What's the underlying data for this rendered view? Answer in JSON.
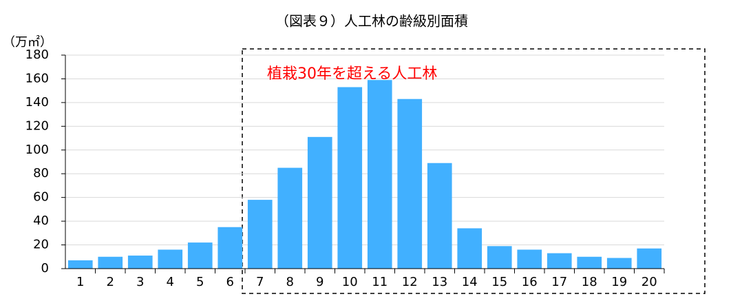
{
  "chart_data": {
    "type": "bar",
    "title": "（図表９）人工林の齢級別面積",
    "y_label": "（万㎡）",
    "annotation": "植栽30年を超える人工林",
    "categories": [
      "1",
      "2",
      "3",
      "4",
      "5",
      "6",
      "7",
      "8",
      "9",
      "10",
      "11",
      "12",
      "13",
      "14",
      "15",
      "16",
      "17",
      "18",
      "19",
      "20"
    ],
    "values": [
      7,
      10,
      11,
      16,
      22,
      35,
      58,
      85,
      111,
      153,
      159,
      143,
      89,
      34,
      19,
      16,
      13,
      10,
      9,
      17
    ],
    "color": "#41b0ff",
    "ylim": [
      0,
      180
    ],
    "yticks": [
      0,
      20,
      40,
      60,
      80,
      100,
      120,
      140,
      160,
      180
    ],
    "grid": true
  }
}
